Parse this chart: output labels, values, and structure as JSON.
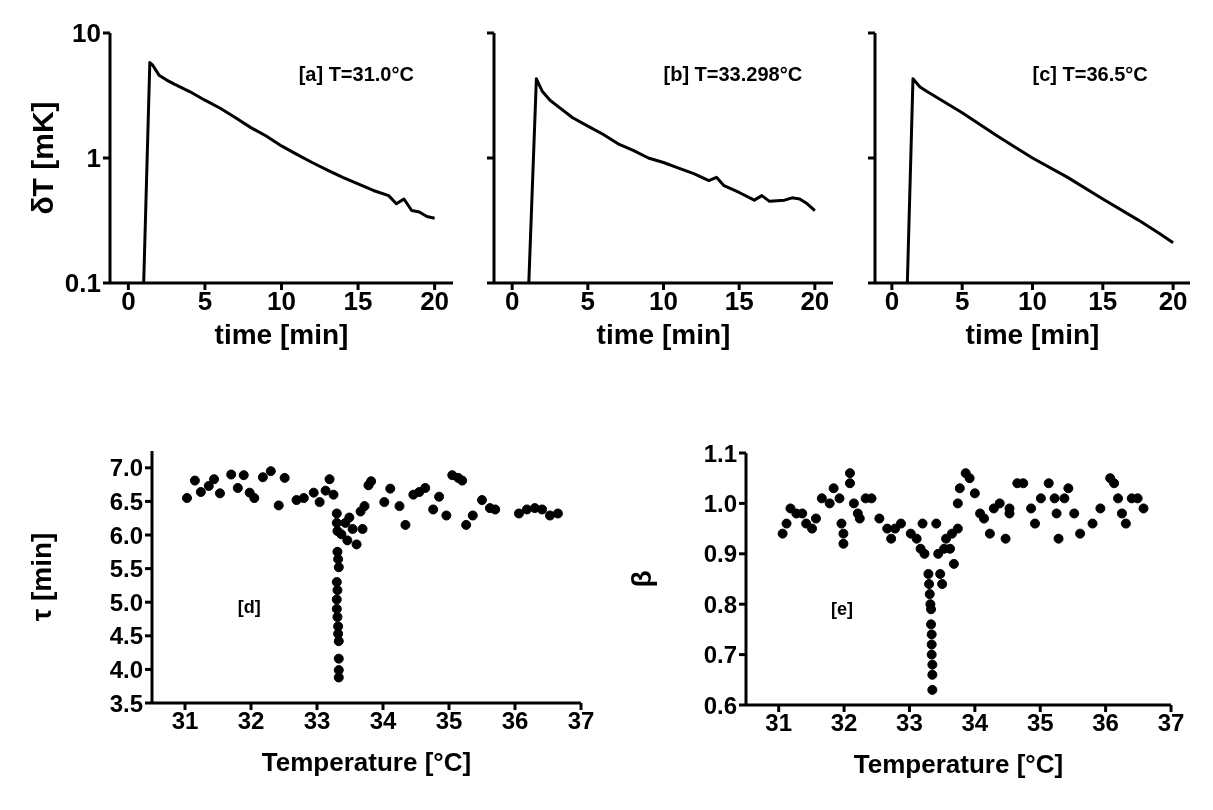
{
  "chart_data": [
    {
      "type": "line",
      "xlabel": "time [min]",
      "ylabel": "δT [mK]",
      "annotations": [
        "[a] T=31.0°C"
      ],
      "color": "#000000",
      "log": "y",
      "xlim": [
        -1.2,
        21.2
      ],
      "xticks": [
        0,
        5,
        10,
        15,
        20
      ],
      "ylim": [
        0.1,
        10
      ],
      "yticks": [
        0.1,
        1,
        10
      ],
      "x": [
        1.0,
        1.4,
        1.6,
        2.0,
        2.5,
        3,
        4,
        5,
        6,
        7,
        8,
        9,
        10,
        11,
        12,
        13,
        14,
        15,
        16,
        17,
        17.5,
        18,
        18.5,
        19,
        19.5,
        20
      ],
      "values": [
        0.1,
        5.8,
        5.5,
        4.6,
        4.2,
        3.9,
        3.4,
        2.9,
        2.5,
        2.1,
        1.75,
        1.5,
        1.25,
        1.07,
        0.92,
        0.8,
        0.7,
        0.62,
        0.55,
        0.5,
        0.43,
        0.47,
        0.38,
        0.37,
        0.34,
        0.33
      ]
    },
    {
      "type": "line",
      "xlabel": "time [min]",
      "annotations": [
        "[b] T=33.298°C"
      ],
      "color": "#000000",
      "log": "y",
      "xlim": [
        -1.2,
        21.2
      ],
      "xticks": [
        0,
        5,
        10,
        15,
        20
      ],
      "ylim": [
        0.1,
        10
      ],
      "yticks": [
        0.1,
        1,
        10
      ],
      "tick_labels": "x",
      "x": [
        1.1,
        1.6,
        2,
        2.5,
        3,
        4,
        5,
        6,
        7,
        8,
        9,
        10,
        11,
        12,
        13,
        13.5,
        14,
        15,
        16,
        16.5,
        17,
        18,
        18.5,
        19,
        19.5,
        20
      ],
      "values": [
        0.1,
        4.3,
        3.4,
        2.9,
        2.6,
        2.1,
        1.8,
        1.55,
        1.3,
        1.15,
        1.0,
        0.92,
        0.83,
        0.75,
        0.66,
        0.7,
        0.6,
        0.53,
        0.46,
        0.5,
        0.45,
        0.46,
        0.48,
        0.47,
        0.43,
        0.38
      ]
    },
    {
      "type": "line",
      "xlabel": "time [min]",
      "annotations": [
        "[c] T=36.5°C"
      ],
      "color": "#000000",
      "log": "y",
      "xlim": [
        -1.2,
        21.2
      ],
      "xticks": [
        0,
        5,
        10,
        15,
        20
      ],
      "ylim": [
        0.1,
        10
      ],
      "yticks": [
        0.1,
        1,
        10
      ],
      "tick_labels": "x",
      "x": [
        1.1,
        1.5,
        2,
        2.5,
        5,
        7.5,
        10,
        12.5,
        15,
        17.5,
        19,
        20
      ],
      "values": [
        0.1,
        4.3,
        3.7,
        3.4,
        2.3,
        1.5,
        1.0,
        0.7,
        0.47,
        0.32,
        0.25,
        0.21
      ]
    },
    {
      "type": "scatter",
      "xlabel": "Temperature [°C]",
      "ylabel": "τ [min]",
      "annotations": [
        "[d]"
      ],
      "color": "#000000",
      "marker": "circle",
      "xlim": [
        30.5,
        37
      ],
      "xticks": [
        31,
        32,
        33,
        34,
        35,
        36,
        37
      ],
      "ylim": [
        3.5,
        7.25
      ],
      "yticks": [
        3.5,
        {
          "value": 4,
          "label": "4.0"
        },
        4.5,
        {
          "value": 5,
          "label": "5.0"
        },
        5.5,
        {
          "value": 6,
          "label": "6.0"
        },
        6.5,
        {
          "value": 7,
          "label": "7.0"
        }
      ],
      "x": [
        31.03,
        31.15,
        31.24,
        31.36,
        31.44,
        31.53,
        31.7,
        31.8,
        31.89,
        31.98,
        32.05,
        32.18,
        32.3,
        32.42,
        32.51,
        32.69,
        32.8,
        32.95,
        33.04,
        33.13,
        33.19,
        33.25,
        33.3,
        33.3,
        33.31,
        33.31,
        33.32,
        33.33,
        33.3,
        33.31,
        33.3,
        33.3,
        33.31,
        33.32,
        33.32,
        33.33,
        33.33,
        33.33,
        33.33,
        33.37,
        33.43,
        33.49,
        33.54,
        33.46,
        33.6,
        33.66,
        33.69,
        33.72,
        33.78,
        33.82,
        34.02,
        34.11,
        34.25,
        34.34,
        34.46,
        34.55,
        34.64,
        34.76,
        34.85,
        34.96,
        35.05,
        35.14,
        35.2,
        35.26,
        35.36,
        35.5,
        35.62,
        35.7,
        36.06,
        36.18,
        36.3,
        36.41,
        36.53,
        36.65
      ],
      "values": [
        6.55,
        6.81,
        6.64,
        6.73,
        6.83,
        6.62,
        6.9,
        6.7,
        6.89,
        6.63,
        6.55,
        6.86,
        6.95,
        6.44,
        6.85,
        6.52,
        6.55,
        6.63,
        6.49,
        6.66,
        6.83,
        6.6,
        6.32,
        6.18,
        6.06,
        5.75,
        5.64,
        5.52,
        5.3,
        5.18,
        5.04,
        4.9,
        4.78,
        4.64,
        4.53,
        4.42,
        4.16,
        3.99,
        3.88,
        6.01,
        6.18,
        6.26,
        6.09,
        5.92,
        5.86,
        6.35,
        6.09,
        6.43,
        6.74,
        6.8,
        6.49,
        6.69,
        6.43,
        6.15,
        6.6,
        6.64,
        6.7,
        6.38,
        6.57,
        6.29,
        6.89,
        6.85,
        6.81,
        6.15,
        6.29,
        6.52,
        6.4,
        6.38,
        6.32,
        6.38,
        6.4,
        6.38,
        6.29,
        6.32
      ]
    },
    {
      "type": "scatter",
      "xlabel": "Temperature [°C]",
      "ylabel": "β",
      "annotations": [
        "[e]"
      ],
      "color": "#000000",
      "marker": "circle",
      "xlim": [
        30.5,
        37
      ],
      "xticks": [
        31,
        32,
        33,
        34,
        35,
        36,
        37
      ],
      "ylim": [
        0.6,
        1.1
      ],
      "yticks": [
        0.6,
        0.7,
        0.8,
        0.9,
        {
          "value": 1,
          "label": "1.0"
        },
        1.1
      ],
      "x": [
        31.06,
        31.12,
        31.18,
        31.27,
        31.36,
        31.42,
        31.51,
        31.57,
        31.66,
        31.78,
        31.84,
        31.93,
        31.96,
        31.99,
        31.99,
        32.09,
        32.09,
        32.15,
        32.21,
        32.24,
        32.33,
        32.42,
        32.54,
        32.66,
        32.72,
        32.78,
        32.87,
        33.02,
        33.11,
        33.2,
        33.17,
        33.23,
        33.29,
        33.3,
        33.31,
        33.32,
        33.33,
        33.33,
        33.34,
        33.34,
        33.34,
        33.35,
        33.35,
        33.35,
        33.41,
        33.44,
        33.47,
        33.5,
        33.53,
        33.56,
        33.62,
        33.65,
        33.68,
        33.74,
        33.74,
        33.77,
        33.86,
        33.92,
        34.0,
        34.08,
        34.14,
        34.23,
        34.29,
        34.38,
        34.47,
        34.53,
        34.53,
        34.65,
        34.74,
        34.86,
        34.92,
        35.01,
        35.13,
        35.22,
        35.25,
        35.28,
        35.37,
        35.43,
        35.52,
        35.61,
        35.8,
        35.92,
        36.07,
        36.13,
        36.19,
        36.25,
        36.31,
        36.4,
        36.49,
        36.58
      ],
      "values": [
        0.94,
        0.96,
        0.99,
        0.98,
        0.98,
        0.96,
        0.95,
        0.97,
        1.01,
        1.0,
        1.03,
        1.01,
        0.96,
        0.94,
        0.92,
        1.06,
        1.04,
        1.0,
        0.98,
        0.97,
        1.01,
        1.01,
        0.97,
        0.95,
        0.93,
        0.95,
        0.96,
        0.94,
        0.93,
        0.96,
        0.91,
        0.9,
        0.86,
        0.84,
        0.82,
        0.8,
        0.79,
        0.76,
        0.74,
        0.72,
        0.7,
        0.68,
        0.66,
        0.63,
        0.96,
        0.9,
        0.86,
        0.84,
        0.91,
        0.93,
        0.91,
        0.94,
        0.88,
        0.95,
        1.0,
        1.03,
        1.06,
        1.05,
        1.02,
        0.98,
        0.97,
        0.94,
        0.99,
        1.0,
        0.93,
        0.99,
        0.98,
        1.04,
        1.04,
        0.99,
        0.96,
        1.01,
        1.04,
        1.01,
        0.98,
        0.93,
        1.01,
        1.03,
        0.98,
        0.94,
        0.96,
        0.99,
        1.05,
        1.04,
        1.01,
        0.98,
        0.96,
        1.01,
        1.01,
        0.99
      ]
    }
  ]
}
